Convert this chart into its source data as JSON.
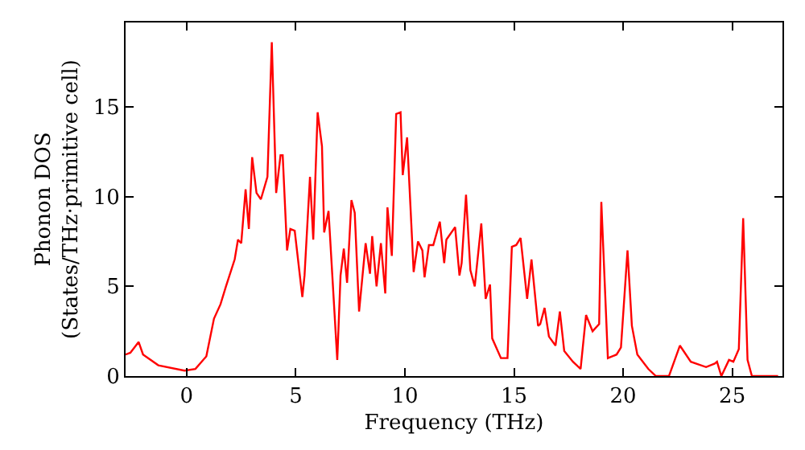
{
  "chart_data": {
    "type": "line",
    "xlabel": "Frequency (THz)",
    "ylabel": "Phonon DOS\n(States/THz·primitive cell)",
    "x": [
      -2.8,
      -2.58,
      -2.2,
      -2.0,
      -1.3,
      -0.1,
      0.4,
      0.9,
      1.25,
      1.55,
      1.8,
      2.2,
      2.35,
      2.5,
      2.7,
      2.85,
      3.0,
      3.2,
      3.4,
      3.7,
      3.9,
      4.1,
      4.3,
      4.4,
      4.6,
      4.75,
      4.95,
      5.3,
      5.4,
      5.65,
      5.8,
      6.0,
      6.2,
      6.3,
      6.5,
      6.9,
      7.05,
      7.2,
      7.35,
      7.55,
      7.7,
      7.9,
      8.2,
      8.4,
      8.5,
      8.7,
      8.9,
      9.1,
      9.2,
      9.4,
      9.6,
      9.8,
      9.9,
      10.1,
      10.4,
      10.6,
      10.8,
      10.9,
      11.1,
      11.3,
      11.6,
      11.8,
      11.9,
      12.3,
      12.5,
      12.6,
      12.8,
      13.0,
      13.2,
      13.5,
      13.7,
      13.9,
      14.0,
      14.4,
      14.7,
      14.9,
      15.1,
      15.3,
      15.6,
      15.8,
      16.1,
      16.2,
      16.4,
      16.6,
      16.9,
      17.1,
      17.3,
      17.7,
      18.05,
      18.3,
      18.6,
      18.9,
      19.0,
      19.3,
      19.7,
      19.9,
      20.2,
      20.4,
      20.65,
      21.15,
      21.5,
      22.1,
      22.6,
      23.1,
      23.8,
      24.2,
      24.3,
      24.5,
      24.85,
      25.05,
      25.3,
      25.5,
      25.7,
      25.9,
      27.1
    ],
    "series": [
      {
        "color": "#ff0000",
        "values": [
          1.2,
          1.3,
          1.9,
          1.2,
          0.6,
          0.3,
          0.4,
          1.1,
          3.2,
          4.0,
          5.0,
          6.5,
          7.6,
          7.4,
          10.4,
          8.2,
          12.2,
          10.2,
          9.85,
          11.1,
          18.6,
          10.2,
          12.3,
          12.3,
          7.0,
          8.2,
          8.1,
          4.4,
          5.6,
          11.1,
          7.6,
          14.7,
          12.8,
          8.0,
          9.2,
          0.9,
          5.6,
          7.1,
          5.2,
          9.8,
          9.1,
          3.6,
          7.4,
          5.7,
          7.8,
          5.0,
          7.4,
          4.6,
          9.4,
          6.7,
          14.6,
          14.7,
          11.2,
          13.3,
          5.8,
          7.5,
          7.0,
          5.5,
          7.3,
          7.3,
          8.6,
          6.3,
          7.6,
          8.3,
          5.6,
          6.3,
          10.1,
          5.9,
          5.0,
          8.5,
          4.3,
          5.1,
          2.1,
          1.0,
          1.0,
          7.2,
          7.3,
          7.7,
          4.3,
          6.5,
          2.8,
          2.9,
          3.8,
          2.2,
          1.7,
          3.6,
          1.4,
          0.8,
          0.4,
          3.4,
          2.5,
          2.9,
          9.7,
          1.0,
          1.2,
          1.6,
          7.0,
          2.8,
          1.2,
          0.4,
          0,
          0,
          1.7,
          0.8,
          0.5,
          0.7,
          0.8,
          0,
          0.9,
          0.8,
          1.5,
          8.8,
          0.9,
          0,
          0
        ]
      }
    ],
    "xlim": [
      -2.8,
      27.3
    ],
    "ylim": [
      0,
      19.7
    ],
    "xticks": [
      0,
      5,
      10,
      15,
      20,
      25
    ],
    "yticks": [
      0,
      5,
      10,
      15
    ],
    "marker": "none",
    "line_style": "solid"
  }
}
